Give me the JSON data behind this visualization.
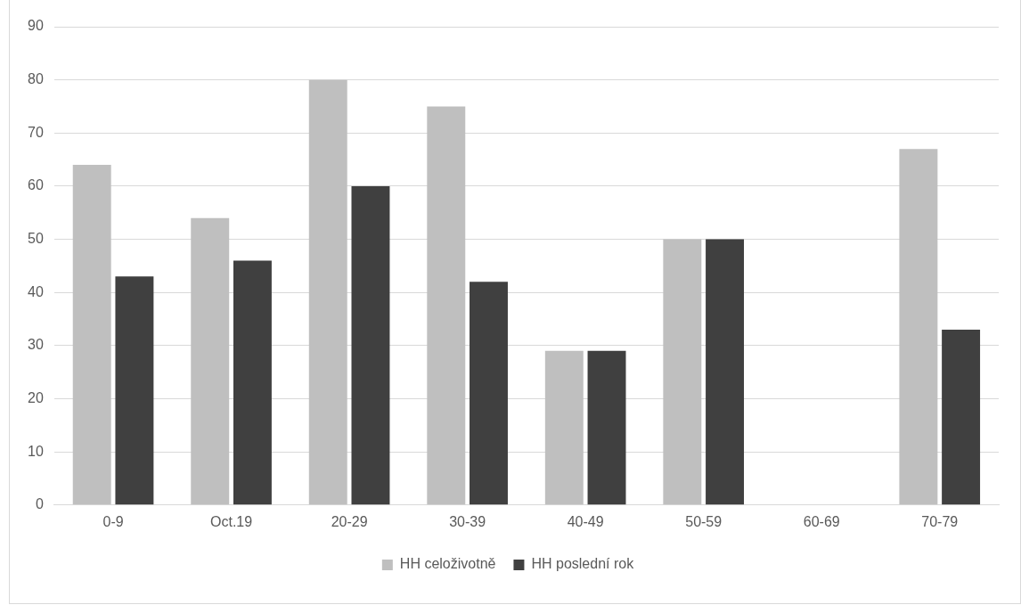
{
  "chart_data": {
    "type": "bar",
    "categories": [
      "0-9",
      "Oct.19",
      "20-29",
      "30-39",
      "40-49",
      "50-59",
      "60-69",
      "70-79"
    ],
    "series": [
      {
        "name": "HH celoživotně",
        "color": "#bfbfbf",
        "values": [
          64,
          54,
          80,
          75,
          29,
          50,
          null,
          67
        ]
      },
      {
        "name": "HH poslední rok",
        "color": "#404040",
        "values": [
          43,
          46,
          60,
          42,
          29,
          50,
          null,
          33
        ]
      }
    ],
    "ylim": [
      0,
      90
    ],
    "yticks": [
      0,
      10,
      20,
      30,
      40,
      50,
      60,
      70,
      80,
      90
    ],
    "grid": "y",
    "legend": "bottom"
  }
}
